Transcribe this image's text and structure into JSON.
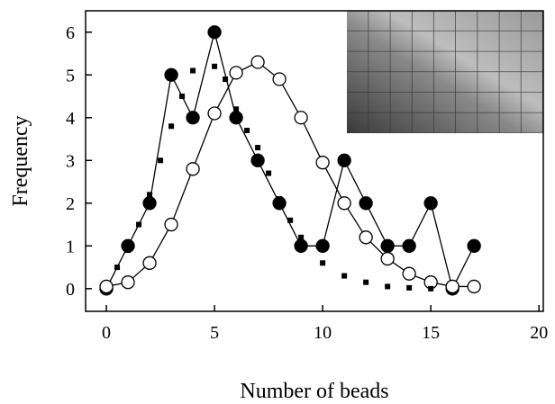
{
  "chart_data": {
    "type": "line",
    "x_label": "Number of beads",
    "y_label": "Frequency",
    "xlim": [
      -0.96,
      20.2
    ],
    "ylim": [
      -0.53,
      6.5
    ],
    "xticks": [
      0,
      5,
      10,
      15,
      20
    ],
    "yticks": [
      0,
      1,
      2,
      3,
      4,
      5,
      6
    ],
    "series": [
      {
        "marker": "filled",
        "color": "#000000",
        "x": [
          0,
          1,
          2,
          3,
          4,
          5,
          6,
          7,
          8,
          9,
          10,
          11,
          12,
          13,
          14,
          15,
          16,
          17
        ],
        "values": [
          0,
          1,
          2,
          5,
          4,
          6,
          4,
          3,
          2,
          1,
          1,
          3,
          2,
          1,
          1,
          2,
          0,
          1
        ]
      },
      {
        "marker": "open",
        "color": "#000000",
        "x": [
          0,
          1,
          2,
          3,
          4,
          5,
          6,
          7,
          8,
          9,
          10,
          11,
          12,
          13,
          14,
          15,
          16,
          17
        ],
        "values": [
          0.05,
          0.15,
          0.6,
          1.5,
          2.8,
          4.1,
          5.05,
          5.3,
          4.9,
          4.0,
          2.95,
          2.0,
          1.2,
          0.7,
          0.35,
          0.15,
          0.05,
          0.05
        ]
      },
      {
        "marker": "square",
        "color": "#000000",
        "x": [
          0.5,
          1,
          1.5,
          2,
          2.5,
          3,
          3.5,
          4,
          5,
          5.5,
          6,
          6.5,
          7,
          7.5,
          8,
          8.5,
          9,
          10,
          11,
          12,
          13,
          14,
          15
        ],
        "values": [
          0.5,
          0.9,
          1.5,
          2.2,
          3.0,
          3.8,
          4.5,
          5.1,
          5.2,
          4.9,
          4.2,
          3.7,
          3.3,
          2.7,
          2.1,
          1.6,
          1.2,
          0.6,
          0.3,
          0.15,
          0.05,
          0.02,
          0
        ]
      }
    ]
  }
}
